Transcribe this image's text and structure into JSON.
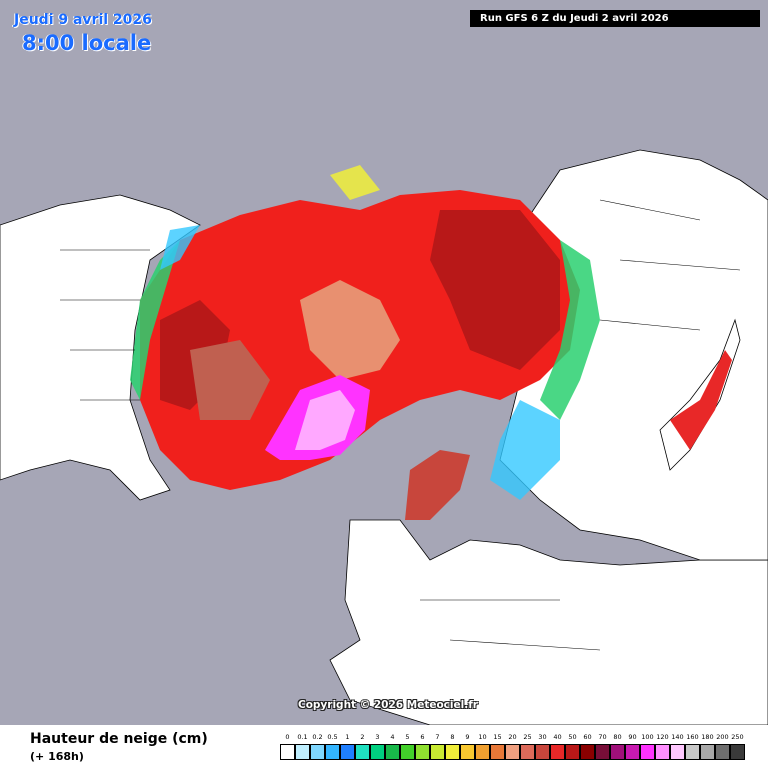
{
  "header": {
    "date": "Jeudi 9 avril 2026",
    "time": "8:00 locale",
    "run": "Run GFS 6 Z du Jeudi 2 avril 2026"
  },
  "copyright": "Copyright © 2026 Meteociel.fr",
  "legend": {
    "title": "Hauteur de neige (cm)",
    "subtitle": "(+ 168h)",
    "ticks": [
      "0",
      "0.1",
      "0.2",
      "0.5",
      "1",
      "2",
      "3",
      "4",
      "5",
      "6",
      "7",
      "8",
      "9",
      "10",
      "15",
      "20",
      "25",
      "30",
      "40",
      "50",
      "60",
      "70",
      "80",
      "90",
      "100",
      "120",
      "140",
      "160",
      "180",
      "200",
      "250"
    ],
    "colors": [
      "#ffffff",
      "#bfefff",
      "#7fd7ff",
      "#33b5ff",
      "#1f7fff",
      "#1fe0c0",
      "#00d080",
      "#18b84a",
      "#42d02a",
      "#8fe030",
      "#c9ea32",
      "#f0ee3a",
      "#f8c830",
      "#f0a030",
      "#e87838",
      "#f0a080",
      "#dd6a5a",
      "#c8463c",
      "#e82828",
      "#b81818",
      "#8a0000",
      "#780e38",
      "#a0107a",
      "#c81ab0",
      "#ff33ff",
      "#ff8fff",
      "#ffc8ff",
      "#c8c8c8",
      "#a8a8a8",
      "#6e6e6e",
      "#3a3a3a"
    ]
  },
  "map_colors": {
    "ocean": "#a6a6b6",
    "land": "#ffffff",
    "snow_red": "#f0201c",
    "snow_darkred": "#b81818",
    "snow_brown": "#c06050",
    "snow_salmon": "#e89070",
    "snow_magenta": "#ff33ff",
    "snow_pink": "#ffa8ff",
    "snow_green": "#2ad070",
    "snow_cyan": "#33c8ff",
    "snow_yellow": "#f0ee3a"
  }
}
